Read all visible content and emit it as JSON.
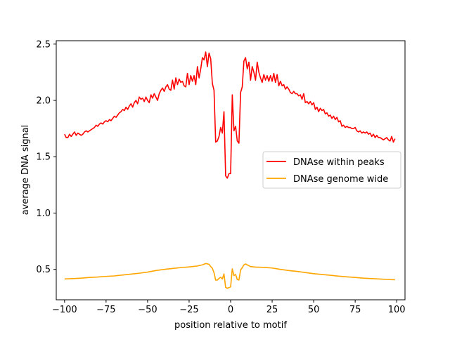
{
  "chart_data": {
    "type": "line",
    "title": "",
    "xlabel": "position relative to motif",
    "ylabel": "average DNA signal",
    "xlim": [
      -105,
      105
    ],
    "ylim": [
      0.23,
      2.53
    ],
    "xticks": [
      -100,
      -75,
      -50,
      -25,
      0,
      25,
      50,
      75,
      100
    ],
    "yticks": [
      0.5,
      1.0,
      1.5,
      2.0,
      2.5
    ],
    "xtick_labels": [
      "−100",
      "−75",
      "−50",
      "−25",
      "0",
      "25",
      "50",
      "75",
      "100"
    ],
    "ytick_labels": [
      "0.5",
      "1.0",
      "1.5",
      "2.0",
      "2.5"
    ],
    "legend_position": "center-right",
    "series": [
      {
        "name": "DNAse within peaks",
        "color": "#ff0000",
        "points": [
          [
            -100,
            1.7
          ],
          [
            -99,
            1.67
          ],
          [
            -98,
            1.67
          ],
          [
            -97,
            1.7
          ],
          [
            -96,
            1.68
          ],
          [
            -95,
            1.7
          ],
          [
            -94,
            1.72
          ],
          [
            -93,
            1.69
          ],
          [
            -92,
            1.71
          ],
          [
            -91,
            1.7
          ],
          [
            -90,
            1.69
          ],
          [
            -89,
            1.7
          ],
          [
            -88,
            1.72
          ],
          [
            -87,
            1.73
          ],
          [
            -86,
            1.72
          ],
          [
            -85,
            1.73
          ],
          [
            -84,
            1.74
          ],
          [
            -83,
            1.75
          ],
          [
            -82,
            1.76
          ],
          [
            -81,
            1.78
          ],
          [
            -80,
            1.77
          ],
          [
            -79,
            1.79
          ],
          [
            -78,
            1.8
          ],
          [
            -77,
            1.79
          ],
          [
            -76,
            1.81
          ],
          [
            -75,
            1.82
          ],
          [
            -74,
            1.81
          ],
          [
            -73,
            1.83
          ],
          [
            -72,
            1.82
          ],
          [
            -71,
            1.84
          ],
          [
            -70,
            1.86
          ],
          [
            -69,
            1.85
          ],
          [
            -68,
            1.87
          ],
          [
            -67,
            1.89
          ],
          [
            -66,
            1.9
          ],
          [
            -65,
            1.92
          ],
          [
            -64,
            1.91
          ],
          [
            -63,
            1.94
          ],
          [
            -62,
            1.92
          ],
          [
            -61,
            1.95
          ],
          [
            -60,
            1.97
          ],
          [
            -59,
            1.94
          ],
          [
            -58,
            1.98
          ],
          [
            -57,
            2.0
          ],
          [
            -56,
            1.97
          ],
          [
            -55,
            2.03
          ],
          [
            -54,
            2.01
          ],
          [
            -53,
            2.02
          ],
          [
            -52,
            1.99
          ],
          [
            -51,
            2.03
          ],
          [
            -50,
            2.0
          ],
          [
            -49,
            1.98
          ],
          [
            -48,
            2.05
          ],
          [
            -47,
            2.02
          ],
          [
            -46,
            2.06
          ],
          [
            -45,
            2.03
          ],
          [
            -44,
            2.0
          ],
          [
            -43,
            2.06
          ],
          [
            -42,
            2.09
          ],
          [
            -41,
            2.11
          ],
          [
            -40,
            2.08
          ],
          [
            -39,
            2.12
          ],
          [
            -38,
            2.14
          ],
          [
            -37,
            2.1
          ],
          [
            -36,
            2.09
          ],
          [
            -35,
            2.18
          ],
          [
            -34,
            2.1
          ],
          [
            -33,
            2.2
          ],
          [
            -32,
            2.14
          ],
          [
            -31,
            2.19
          ],
          [
            -30,
            2.16
          ],
          [
            -29,
            2.17
          ],
          [
            -28,
            2.13
          ],
          [
            -27,
            2.12
          ],
          [
            -26,
            2.24
          ],
          [
            -25,
            2.14
          ],
          [
            -24,
            2.22
          ],
          [
            -23,
            2.17
          ],
          [
            -22,
            2.22
          ],
          [
            -21,
            2.14
          ],
          [
            -20,
            2.3
          ],
          [
            -19,
            2.2
          ],
          [
            -18,
            2.28
          ],
          [
            -17,
            2.38
          ],
          [
            -16,
            2.36
          ],
          [
            -15,
            2.43
          ],
          [
            -14,
            2.3
          ],
          [
            -13,
            2.42
          ],
          [
            -12,
            2.37
          ],
          [
            -11,
            2.15
          ],
          [
            -10,
            2.09
          ],
          [
            -9,
            1.63
          ],
          [
            -8,
            1.64
          ],
          [
            -7,
            1.68
          ],
          [
            -6,
            1.76
          ],
          [
            -5,
            1.71
          ],
          [
            -4,
            1.9
          ],
          [
            -3,
            1.33
          ],
          [
            -2,
            1.31
          ],
          [
            -1,
            1.35
          ],
          [
            0,
            1.35
          ],
          [
            1,
            2.05
          ],
          [
            2,
            1.73
          ],
          [
            3,
            1.77
          ],
          [
            4,
            1.64
          ],
          [
            5,
            1.62
          ],
          [
            6,
            2.07
          ],
          [
            7,
            2.12
          ],
          [
            8,
            2.35
          ],
          [
            9,
            2.38
          ],
          [
            10,
            2.28
          ],
          [
            11,
            2.34
          ],
          [
            12,
            2.18
          ],
          [
            13,
            2.3
          ],
          [
            14,
            2.25
          ],
          [
            15,
            2.18
          ],
          [
            16,
            2.34
          ],
          [
            17,
            2.25
          ],
          [
            18,
            2.2
          ],
          [
            19,
            2.16
          ],
          [
            20,
            2.23
          ],
          [
            21,
            2.18
          ],
          [
            22,
            2.22
          ],
          [
            23,
            2.17
          ],
          [
            24,
            2.22
          ],
          [
            25,
            2.17
          ],
          [
            26,
            2.24
          ],
          [
            27,
            2.16
          ],
          [
            28,
            2.23
          ],
          [
            29,
            2.13
          ],
          [
            30,
            2.17
          ],
          [
            31,
            2.13
          ],
          [
            32,
            2.14
          ],
          [
            33,
            2.1
          ],
          [
            34,
            2.12
          ],
          [
            35,
            2.1
          ],
          [
            36,
            2.07
          ],
          [
            37,
            2.06
          ],
          [
            38,
            2.08
          ],
          [
            39,
            2.06
          ],
          [
            40,
            2.06
          ],
          [
            41,
            2.04
          ],
          [
            42,
            2.05
          ],
          [
            43,
            2.01
          ],
          [
            44,
            2.06
          ],
          [
            45,
            1.98
          ],
          [
            46,
            1.99
          ],
          [
            47,
            1.97
          ],
          [
            48,
            1.99
          ],
          [
            49,
            1.96
          ],
          [
            50,
            1.98
          ],
          [
            51,
            1.92
          ],
          [
            52,
            1.94
          ],
          [
            53,
            1.9
          ],
          [
            54,
            1.93
          ],
          [
            55,
            1.91
          ],
          [
            56,
            1.92
          ],
          [
            57,
            1.88
          ],
          [
            58,
            1.89
          ],
          [
            59,
            1.86
          ],
          [
            60,
            1.87
          ],
          [
            61,
            1.84
          ],
          [
            62,
            1.86
          ],
          [
            63,
            1.83
          ],
          [
            64,
            1.85
          ],
          [
            65,
            1.81
          ],
          [
            66,
            1.82
          ],
          [
            67,
            1.77
          ],
          [
            68,
            1.78
          ],
          [
            69,
            1.76
          ],
          [
            70,
            1.77
          ],
          [
            71,
            1.76
          ],
          [
            72,
            1.76
          ],
          [
            73,
            1.75
          ],
          [
            74,
            1.75
          ],
          [
            75,
            1.76
          ],
          [
            76,
            1.73
          ],
          [
            77,
            1.72
          ],
          [
            78,
            1.73
          ],
          [
            79,
            1.71
          ],
          [
            80,
            1.72
          ],
          [
            81,
            1.71
          ],
          [
            82,
            1.72
          ],
          [
            83,
            1.7
          ],
          [
            84,
            1.71
          ],
          [
            85,
            1.68
          ],
          [
            86,
            1.7
          ],
          [
            87,
            1.67
          ],
          [
            88,
            1.69
          ],
          [
            89,
            1.67
          ],
          [
            90,
            1.67
          ],
          [
            91,
            1.66
          ],
          [
            92,
            1.65
          ],
          [
            93,
            1.66
          ],
          [
            94,
            1.67
          ],
          [
            95,
            1.65
          ],
          [
            96,
            1.64
          ],
          [
            97,
            1.68
          ],
          [
            98,
            1.63
          ],
          [
            99,
            1.66
          ]
        ]
      },
      {
        "name": "DNAse genome wide",
        "color": "#ffa500",
        "points": [
          [
            -100,
            0.415
          ],
          [
            -95,
            0.418
          ],
          [
            -90,
            0.422
          ],
          [
            -85,
            0.428
          ],
          [
            -80,
            0.432
          ],
          [
            -75,
            0.438
          ],
          [
            -70,
            0.442
          ],
          [
            -65,
            0.45
          ],
          [
            -60,
            0.458
          ],
          [
            -55,
            0.466
          ],
          [
            -50,
            0.476
          ],
          [
            -45,
            0.49
          ],
          [
            -40,
            0.5
          ],
          [
            -35,
            0.508
          ],
          [
            -30,
            0.516
          ],
          [
            -25,
            0.522
          ],
          [
            -20,
            0.53
          ],
          [
            -17,
            0.54
          ],
          [
            -15,
            0.552
          ],
          [
            -13,
            0.545
          ],
          [
            -12,
            0.525
          ],
          [
            -11,
            0.51
          ],
          [
            -10,
            0.47
          ],
          [
            -9,
            0.405
          ],
          [
            -8,
            0.405
          ],
          [
            -7,
            0.42
          ],
          [
            -6,
            0.43
          ],
          [
            -5,
            0.415
          ],
          [
            -4,
            0.46
          ],
          [
            -3,
            0.34
          ],
          [
            -2,
            0.332
          ],
          [
            -1,
            0.338
          ],
          [
            0,
            0.345
          ],
          [
            1,
            0.505
          ],
          [
            2,
            0.445
          ],
          [
            3,
            0.455
          ],
          [
            4,
            0.41
          ],
          [
            5,
            0.405
          ],
          [
            6,
            0.495
          ],
          [
            7,
            0.515
          ],
          [
            8,
            0.54
          ],
          [
            9,
            0.548
          ],
          [
            10,
            0.54
          ],
          [
            12,
            0.525
          ],
          [
            15,
            0.52
          ],
          [
            20,
            0.518
          ],
          [
            25,
            0.512
          ],
          [
            30,
            0.5
          ],
          [
            35,
            0.49
          ],
          [
            40,
            0.482
          ],
          [
            45,
            0.472
          ],
          [
            50,
            0.462
          ],
          [
            55,
            0.455
          ],
          [
            60,
            0.448
          ],
          [
            65,
            0.44
          ],
          [
            70,
            0.434
          ],
          [
            75,
            0.428
          ],
          [
            80,
            0.422
          ],
          [
            85,
            0.418
          ],
          [
            90,
            0.414
          ],
          [
            95,
            0.41
          ],
          [
            99,
            0.408
          ]
        ]
      }
    ]
  }
}
